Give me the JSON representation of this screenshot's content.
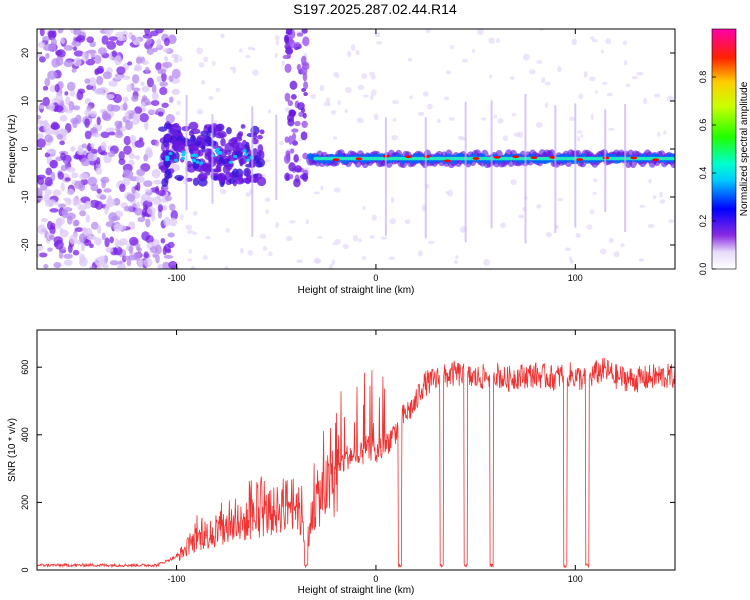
{
  "title": "S197.2025.287.02.44.R14",
  "chart_data": [
    {
      "type": "heatmap",
      "title": "S197.2025.287.02.44.R14",
      "xlabel": "Height of straight line (km)",
      "ylabel": "Frequency (Hz)",
      "xlim": [
        -170,
        150
      ],
      "ylim": [
        -25,
        25
      ],
      "xticks": [
        -100,
        0,
        100
      ],
      "yticks": [
        -20,
        -10,
        0,
        10,
        20
      ],
      "colorbar": {
        "label": "Normalized spectral amplitude",
        "range": [
          0.0,
          1.0
        ],
        "ticks": [
          "0.0",
          "0.2",
          "0.4",
          "0.6",
          "0.8"
        ]
      },
      "ridge_center_hz": -2,
      "ridge_x_range_km": [
        -107,
        150
      ],
      "signal_color": "#ff0000"
    },
    {
      "type": "line",
      "xlabel": "Height of straight line (km)",
      "ylabel": "SNR (10 * v/v)",
      "xlim": [
        -170,
        150
      ],
      "ylim": [
        0,
        710
      ],
      "xticks": [
        -100,
        0,
        100
      ],
      "yticks": [
        0,
        200,
        400,
        600
      ],
      "line_color": "#ee3333",
      "series": [
        {
          "name": "SNR",
          "x": [
            -170,
            -150,
            -130,
            -110,
            -100,
            -95,
            -90,
            -80,
            -70,
            -60,
            -50,
            -45,
            -40,
            -35,
            -30,
            -25,
            -20,
            -15,
            -12,
            -10,
            -5,
            0,
            5,
            10,
            12,
            15,
            20,
            22,
            25,
            30,
            35,
            40,
            45,
            50,
            55,
            60,
            65,
            70,
            80,
            90,
            95,
            100,
            105,
            110,
            115,
            120,
            130,
            140,
            150
          ],
          "values": [
            15,
            15,
            15,
            15,
            40,
            70,
            100,
            120,
            140,
            170,
            190,
            210,
            220,
            100,
            220,
            260,
            290,
            340,
            350,
            320,
            370,
            350,
            380,
            420,
            450,
            470,
            500,
            540,
            560,
            570,
            580,
            590,
            580,
            575,
            580,
            590,
            570,
            580,
            585,
            575,
            590,
            580,
            570,
            590,
            600,
            580,
            570,
            580,
            580
          ]
        }
      ],
      "dropouts_km": [
        -35,
        12,
        33,
        45,
        58,
        95,
        106
      ]
    }
  ]
}
